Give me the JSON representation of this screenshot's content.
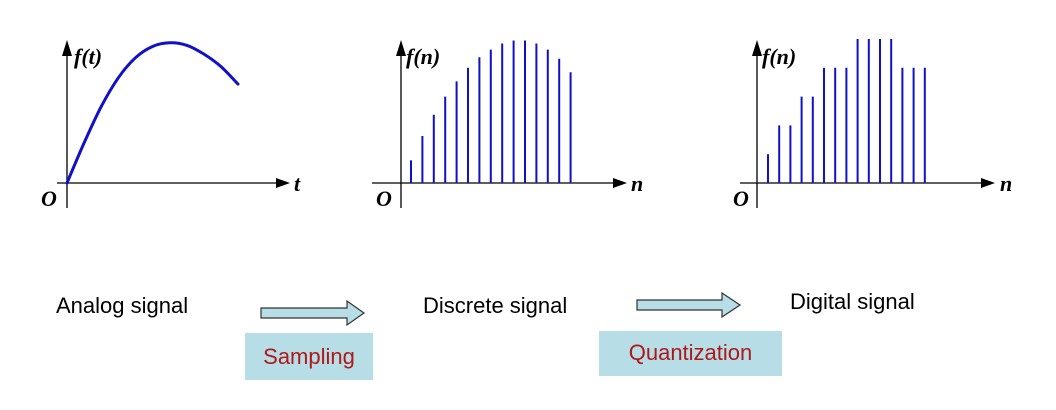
{
  "colors": {
    "signal": "#1010c8",
    "axis": "#000000",
    "arrow_fill": "#b7dde6",
    "process_box": "#b7dde6",
    "process_text": "#b01818"
  },
  "panels": {
    "analog": {
      "ylabel": "f(t)",
      "xlabel": "t",
      "origin": "O"
    },
    "discrete": {
      "ylabel": "f(n)",
      "xlabel": "n",
      "origin": "O"
    },
    "digital": {
      "ylabel": "f(n)",
      "xlabel": "n",
      "origin": "O"
    }
  },
  "chart_data": [
    {
      "type": "line",
      "panel": "analog",
      "ylabel": "f(t)",
      "xlabel": "t",
      "x": [
        0,
        1,
        2,
        3,
        4,
        5,
        6,
        7,
        8,
        9,
        10
      ],
      "y": [
        0,
        3.2,
        6.1,
        8.4,
        10.0,
        10.9,
        11.2,
        11.0,
        10.3,
        9.3,
        7.9
      ],
      "ylim": [
        0,
        11.5
      ]
    },
    {
      "type": "bar",
      "panel": "discrete",
      "ylabel": "f(n)",
      "xlabel": "n",
      "values": [
        1.5,
        3.1,
        4.5,
        5.7,
        6.7,
        7.6,
        8.3,
        8.8,
        9.2,
        9.4,
        9.4,
        9.2,
        8.8,
        8.2,
        7.3
      ],
      "ylim": [
        0,
        9.5
      ]
    },
    {
      "type": "bar",
      "panel": "digital",
      "ylabel": "f(n)",
      "xlabel": "n",
      "values": [
        2,
        4,
        4,
        6,
        6,
        8,
        8,
        8,
        10,
        10,
        10,
        10,
        8,
        8,
        8
      ],
      "ylim": [
        0,
        10
      ]
    }
  ],
  "stages": {
    "analog": "Analog signal",
    "discrete": "Discrete signal",
    "digital": "Digital signal"
  },
  "processes": {
    "sampling": "Sampling",
    "quantization": "Quantization"
  }
}
